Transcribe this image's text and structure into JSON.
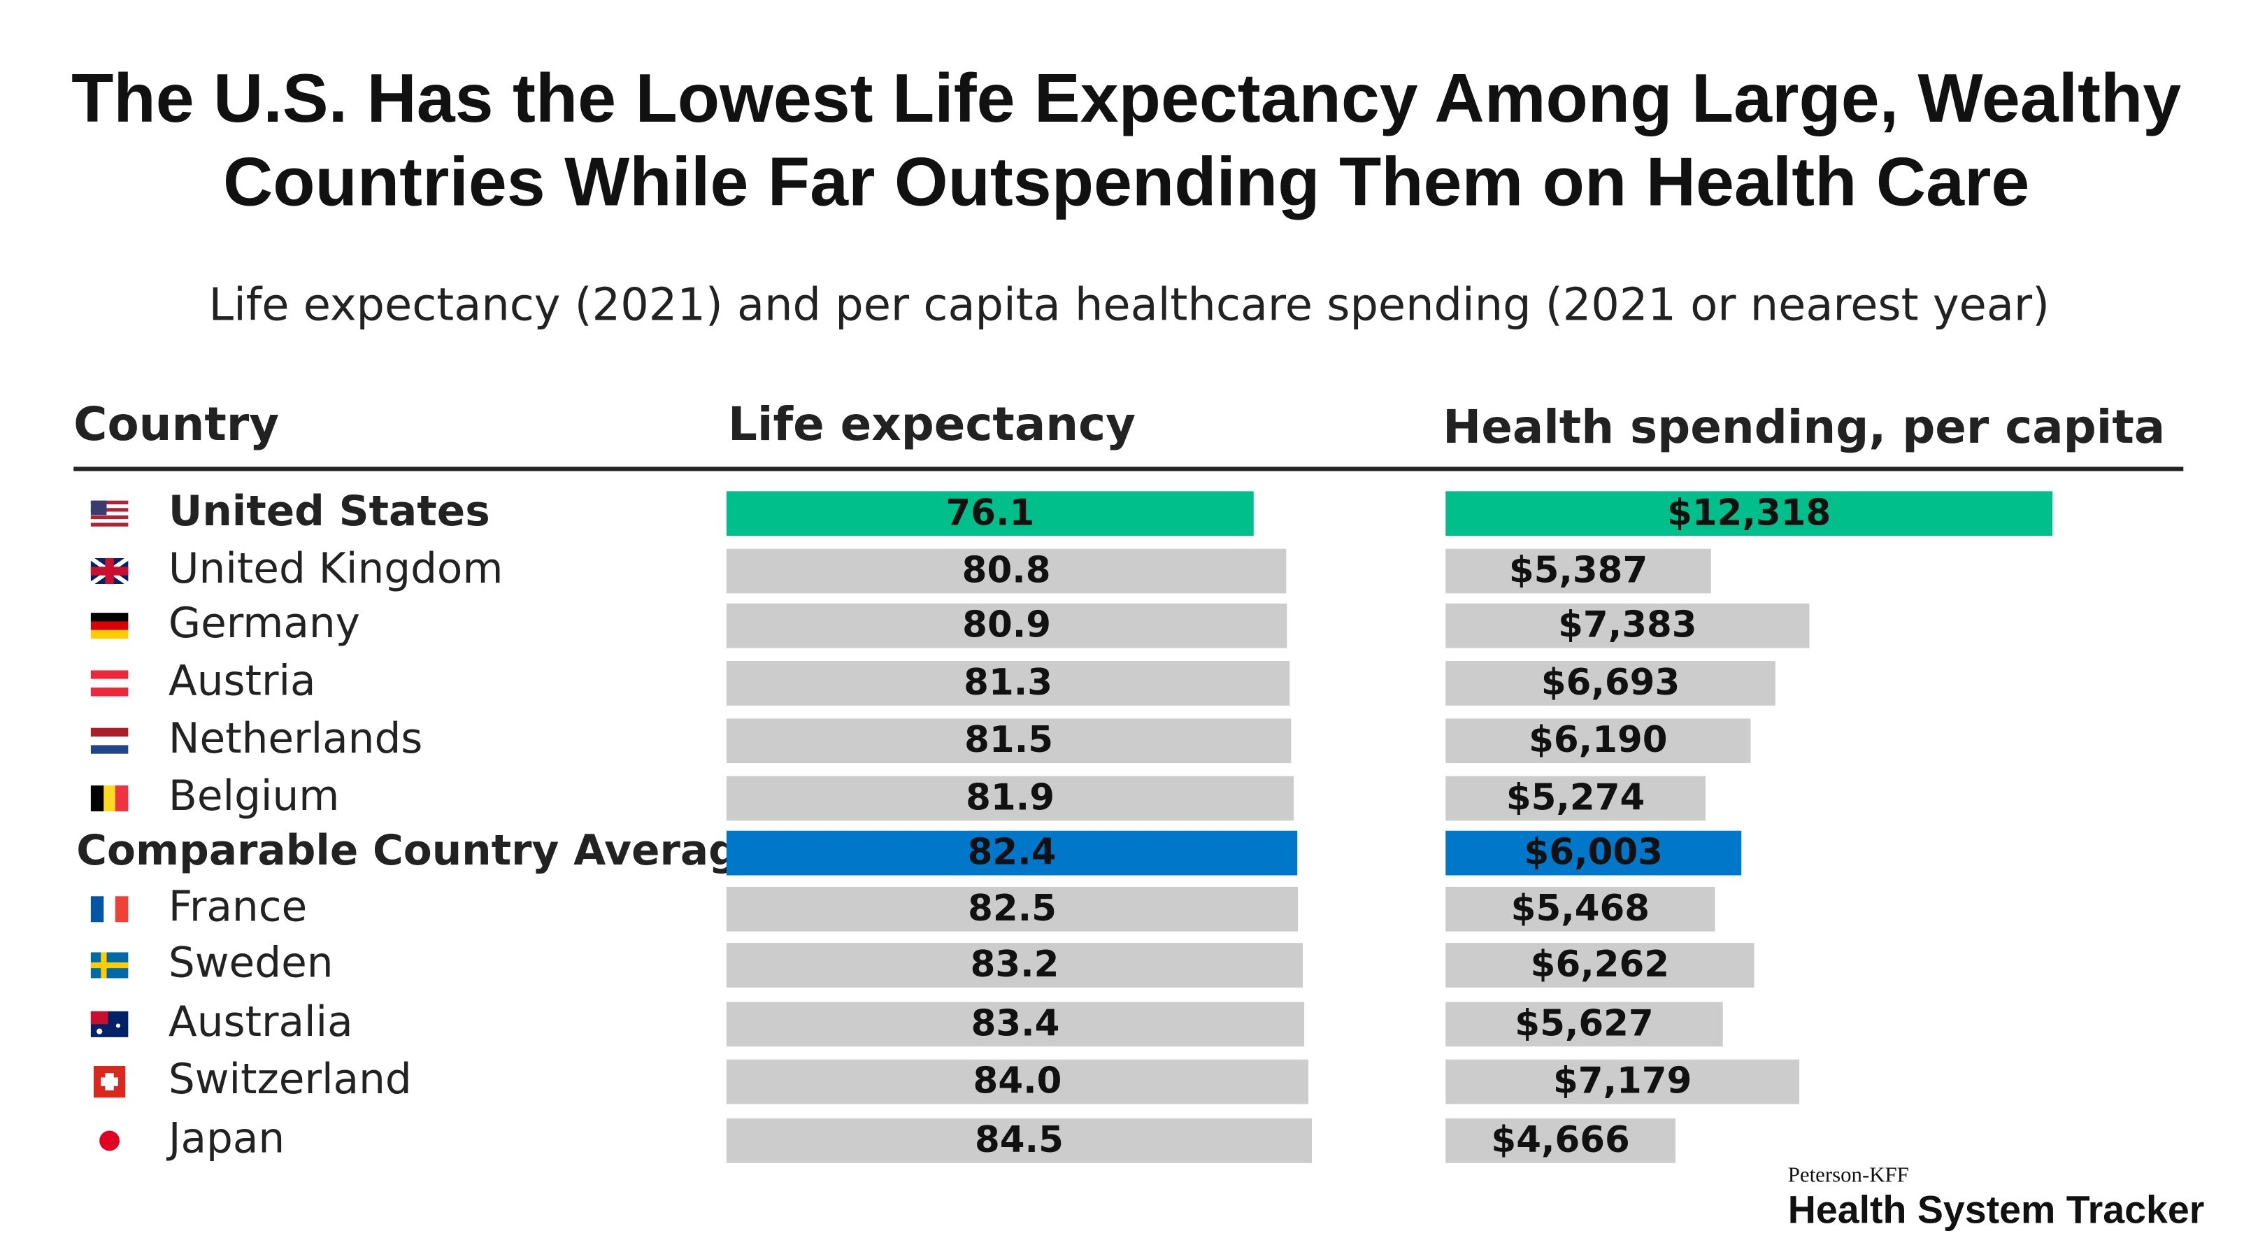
{
  "chart_data": {
    "type": "bar",
    "title": "The U.S. Has the Lowest Life Expectancy Among Large, Wealthy Countries While Far Outspending Them on Health Care",
    "title_lines": [
      "The U.S. Has the Lowest Life Expectancy Among Large, Wealthy",
      "Countries While Far Outspending Them on Health Care"
    ],
    "subtitle": "Life expectancy (2021) and per capita healthcare spending (2021 or nearest year)",
    "category_header": "Country",
    "categories": [
      "United States",
      "United Kingdom",
      "Germany",
      "Austria",
      "Netherlands",
      "Belgium",
      "Comparable Country Average",
      "France",
      "Sweden",
      "Australia",
      "Switzerland",
      "Japan"
    ],
    "colors": [
      "#00bf8a",
      "#cccccc",
      "#cccccc",
      "#cccccc",
      "#cccccc",
      "#cccccc",
      "#0077c8",
      "#cccccc",
      "#cccccc",
      "#cccccc",
      "#cccccc",
      "#cccccc"
    ],
    "series": [
      {
        "name": "Life expectancy",
        "values": [
          76.1,
          80.8,
          80.9,
          81.3,
          81.5,
          81.9,
          82.4,
          82.5,
          83.2,
          83.4,
          84.0,
          84.5
        ],
        "value_labels": [
          "76.1",
          "80.8",
          "80.9",
          "81.3",
          "81.5",
          "81.9",
          "82.4",
          "82.5",
          "83.2",
          "83.4",
          "84.0",
          "84.5"
        ]
      },
      {
        "name": "Health spending, per capita",
        "values": [
          12318,
          5387,
          7383,
          6693,
          6190,
          5274,
          6003,
          5468,
          6262,
          5627,
          7179,
          4666
        ],
        "value_labels": [
          "$12,318",
          "$5,387",
          "$7,383",
          "$6,693",
          "$6,190",
          "$5,274",
          "$6,003",
          "$5,468",
          "$6,262",
          "$5,627",
          "$7,179",
          "$4,666"
        ]
      }
    ],
    "source": [
      "Peterson-KFF",
      "Health System Tracker"
    ]
  }
}
